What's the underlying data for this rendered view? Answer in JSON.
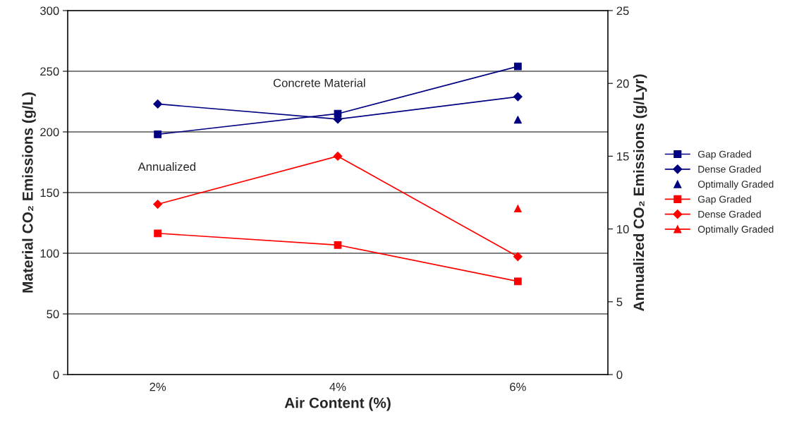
{
  "chart_data": {
    "type": "line",
    "categories": [
      "2%",
      "4%",
      "6%"
    ],
    "xlabel": "Air Content (%)",
    "ylabel": "Material CO₂ Emissions (g/L)",
    "y2label": "Annualized CO₂ Emissions (g/Lyr)",
    "ylim": [
      0,
      300
    ],
    "yticks": [
      0,
      50,
      100,
      150,
      200,
      250,
      300
    ],
    "y2lim": [
      0,
      25
    ],
    "y2ticks": [
      0,
      5,
      10,
      15,
      20,
      25
    ],
    "grid": "y",
    "legend": "right",
    "annotations": [
      "Concrete Material",
      "Annualized"
    ],
    "series": [
      {
        "name": "Gap Graded",
        "color": "#000080",
        "marker": "square",
        "values": [
          198,
          215,
          254
        ]
      },
      {
        "name": "Dense Graded",
        "color": "#000080",
        "marker": "diamond",
        "values": [
          223,
          210.5,
          229
        ]
      },
      {
        "name": "Optimally Graded",
        "type": "scatter",
        "color": "#000080",
        "marker": "triangle",
        "values": [
          null,
          null,
          210
        ]
      },
      {
        "name": "Gap Graded",
        "color": "#ff0000",
        "marker": "square",
        "axis": "y2",
        "values": [
          9.7,
          8.9,
          6.4
        ]
      },
      {
        "name": "Dense Graded",
        "color": "#ff0000",
        "marker": "diamond",
        "axis": "y2",
        "values": [
          11.7,
          15.0,
          8.1
        ]
      },
      {
        "name": "Optimally Graded",
        "color": "#ff0000",
        "marker": "triangle",
        "axis": "y2",
        "values": [
          null,
          null,
          11.4
        ]
      }
    ]
  }
}
